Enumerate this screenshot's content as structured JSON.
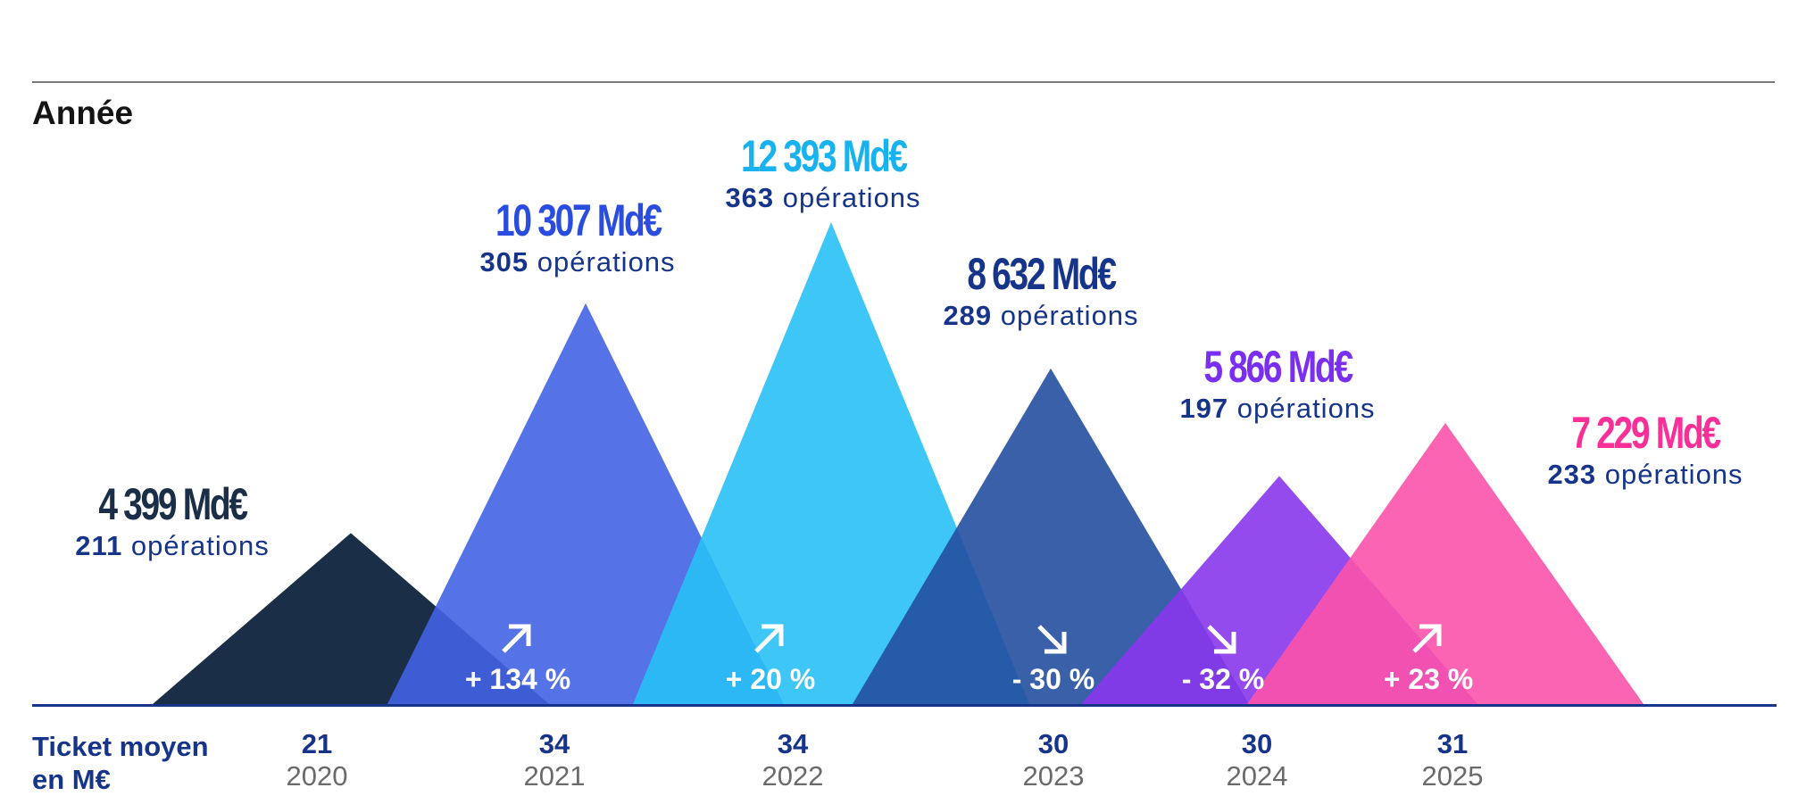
{
  "chart_data": {
    "type": "area",
    "title": "Année",
    "ticket_label_line1": "Ticket moyen",
    "ticket_label_line2": "en M€",
    "categories": [
      "2020",
      "2021",
      "2022",
      "2023",
      "2024",
      "2025"
    ],
    "values": [
      4399,
      10307,
      12393,
      8632,
      5866,
      7229
    ],
    "value_labels": [
      "4 399 Md€",
      "10 307 Md€",
      "12 393 Md€",
      "8 632 Md€",
      "5 866 Md€",
      "7 229 Md€"
    ],
    "operations": [
      211,
      305,
      363,
      289,
      197,
      233
    ],
    "operations_word": "opérations",
    "ticket_moyen": [
      21,
      34,
      34,
      30,
      30,
      31
    ],
    "changes": [
      {
        "label": "+ 134 %",
        "direction": "up"
      },
      {
        "label": "+ 20 %",
        "direction": "up"
      },
      {
        "label": "- 30 %",
        "direction": "down"
      },
      {
        "label": "- 32 %",
        "direction": "down"
      },
      {
        "label": "+ 23 %",
        "direction": "up"
      }
    ],
    "colors": [
      "#1a2e47",
      "#4363e3",
      "#28c0f5",
      "#244fa0",
      "#8837ec",
      "#fb53aa"
    ],
    "label_colors": [
      "#1a2e47",
      "#2a4de0",
      "#18b3ee",
      "#16348a",
      "#7a2ff0",
      "#fb2f98"
    ]
  }
}
